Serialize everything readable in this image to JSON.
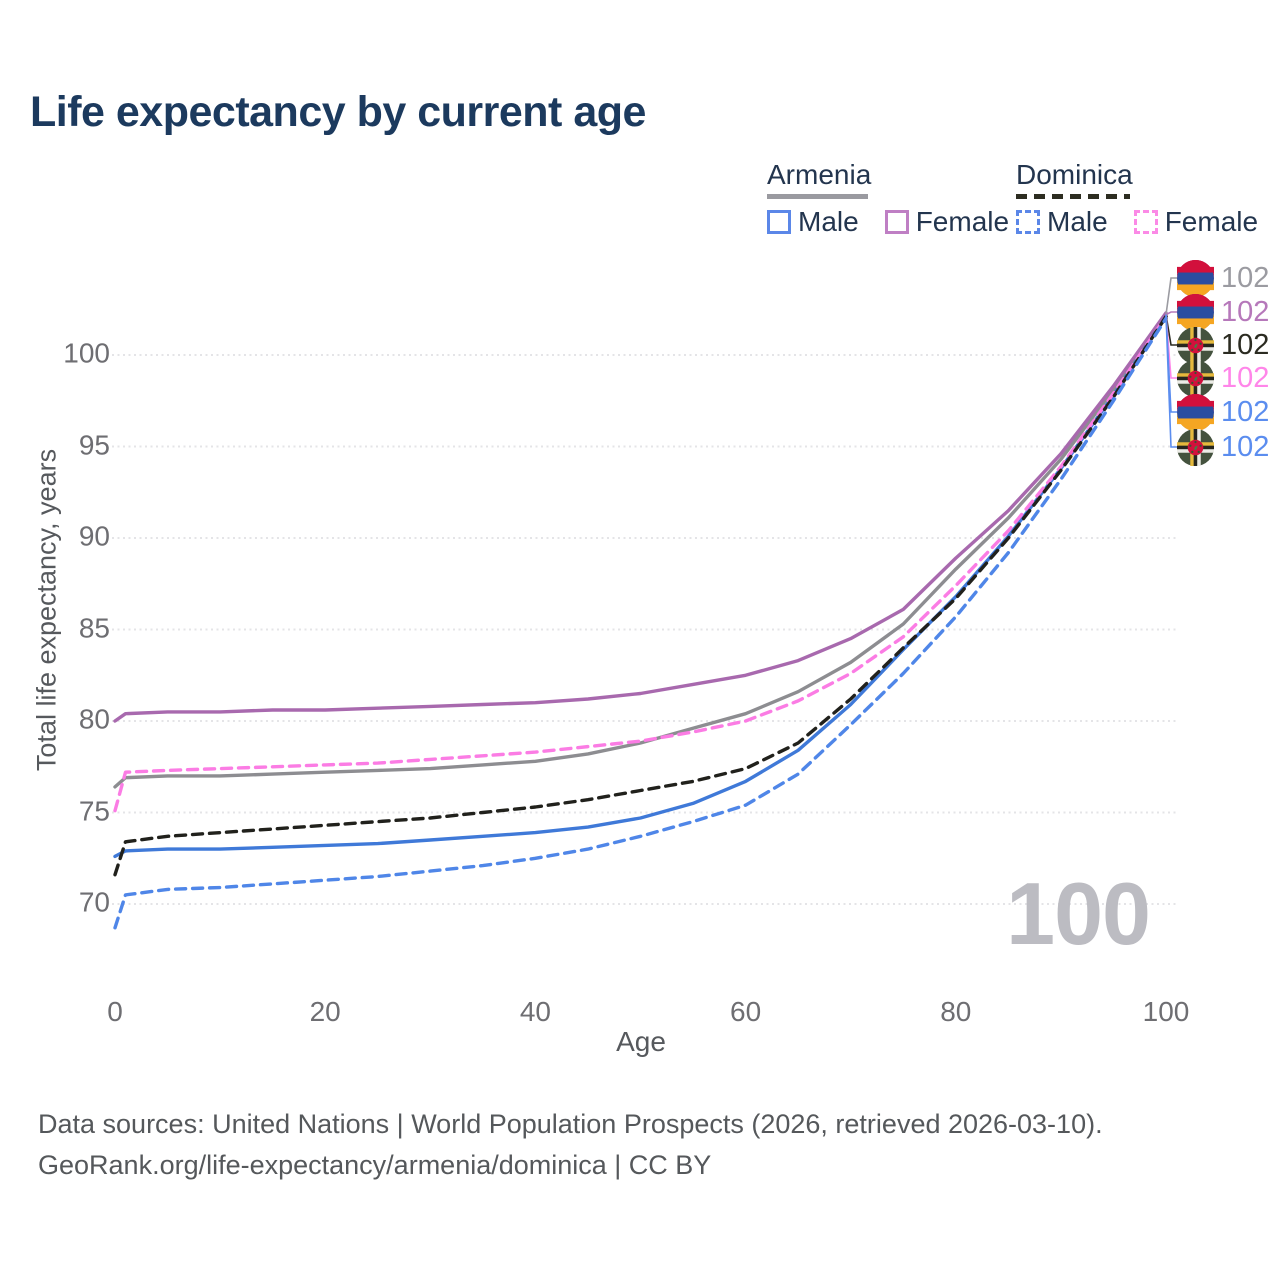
{
  "title": "Life expectancy by current age",
  "legend": {
    "groups": [
      {
        "country": "Armenia",
        "line_style": "solid",
        "underline_color": "#9a9aa0",
        "items": [
          {
            "label": "Male",
            "color": "#5b87e8",
            "dashed": false
          },
          {
            "label": "Female",
            "color": "#bf7fc4",
            "dashed": false
          }
        ]
      },
      {
        "country": "Dominica",
        "line_style": "dashed",
        "underline_color": "#2d2d21",
        "items": [
          {
            "label": "Male",
            "color": "#5b87e8",
            "dashed": true
          },
          {
            "label": "Female",
            "color": "#fb8ae6",
            "dashed": true
          }
        ]
      }
    ]
  },
  "chart_data": {
    "type": "line",
    "xlabel": "Age",
    "ylabel": "Total life expectancy, years",
    "xticks": [
      0,
      20,
      40,
      60,
      80,
      100
    ],
    "yticks": [
      70,
      75,
      80,
      85,
      90,
      95,
      100
    ],
    "xlim": [
      0,
      100
    ],
    "ylim": [
      67,
      103
    ],
    "grid": "horizontal-dotted",
    "x": [
      0,
      1,
      5,
      10,
      15,
      20,
      25,
      30,
      35,
      40,
      45,
      50,
      55,
      60,
      65,
      70,
      75,
      80,
      85,
      90,
      95,
      100
    ],
    "series": [
      {
        "name": "Armenia All",
        "country": "Armenia",
        "sex": "all",
        "color": "#8d8d91",
        "dashed": false,
        "values": [
          76.4,
          76.9,
          77.0,
          77.0,
          77.1,
          77.2,
          77.3,
          77.4,
          77.6,
          77.8,
          78.2,
          78.8,
          79.6,
          80.4,
          81.6,
          83.2,
          85.3,
          88.3,
          91.1,
          94.3,
          98.1,
          102.2
        ]
      },
      {
        "name": "Armenia Female",
        "country": "Armenia",
        "sex": "female",
        "color": "#a869ae",
        "dashed": false,
        "values": [
          80.0,
          80.4,
          80.5,
          80.5,
          80.6,
          80.6,
          80.7,
          80.8,
          80.9,
          81.0,
          81.2,
          81.5,
          82.0,
          82.5,
          83.3,
          84.5,
          86.1,
          88.9,
          91.5,
          94.6,
          98.3,
          102.3
        ]
      },
      {
        "name": "Armenia Male",
        "country": "Armenia",
        "sex": "male",
        "color": "#3f79d8",
        "dashed": false,
        "values": [
          72.6,
          72.9,
          73.0,
          73.0,
          73.1,
          73.2,
          73.3,
          73.5,
          73.7,
          73.9,
          74.2,
          74.7,
          75.5,
          76.7,
          78.4,
          80.9,
          83.9,
          86.8,
          90.1,
          93.8,
          97.8,
          102.1
        ]
      },
      {
        "name": "Dominica Female",
        "country": "Dominica",
        "sex": "female",
        "color": "#fb7ce4",
        "dashed": true,
        "values": [
          75.1,
          77.2,
          77.3,
          77.4,
          77.5,
          77.6,
          77.7,
          77.9,
          78.1,
          78.3,
          78.6,
          78.9,
          79.4,
          80.0,
          81.1,
          82.6,
          84.6,
          87.4,
          90.4,
          93.9,
          97.9,
          102.1
        ]
      },
      {
        "name": "Dominica All",
        "country": "Dominica",
        "sex": "all",
        "color": "#21211c",
        "dashed": true,
        "values": [
          71.6,
          73.4,
          73.7,
          73.9,
          74.1,
          74.3,
          74.5,
          74.7,
          75.0,
          75.3,
          75.7,
          76.2,
          76.7,
          77.4,
          78.8,
          81.2,
          84.0,
          86.7,
          90.0,
          93.7,
          97.7,
          102.1
        ]
      },
      {
        "name": "Dominica Male",
        "country": "Dominica",
        "sex": "male",
        "color": "#4f86e8",
        "dashed": true,
        "values": [
          68.7,
          70.5,
          70.8,
          70.9,
          71.1,
          71.3,
          71.5,
          71.8,
          72.1,
          72.5,
          73.0,
          73.7,
          74.5,
          75.4,
          77.1,
          79.8,
          82.6,
          85.7,
          89.2,
          93.2,
          97.5,
          102.0
        ]
      }
    ]
  },
  "endpoint_labels": [
    {
      "flag": "armenia",
      "value": "102",
      "color": "#9b9ba1"
    },
    {
      "flag": "armenia",
      "value": "102",
      "color": "#b678ba"
    },
    {
      "flag": "dominica",
      "value": "102",
      "color": "#2b2b21"
    },
    {
      "flag": "dominica",
      "value": "102",
      "color": "#ff86e9"
    },
    {
      "flag": "armenia",
      "value": "102",
      "color": "#5b8def"
    },
    {
      "flag": "dominica",
      "value": "102",
      "color": "#5b8def"
    }
  ],
  "flag_colors": {
    "armenia": {
      "stripes": [
        "#d2103c",
        "#2a4da0",
        "#f5a623"
      ]
    },
    "dominica": {
      "field": "#44523e",
      "cross": [
        "#e6b93c",
        "#26261e",
        "#ebebe6"
      ],
      "disc": "#d2103c",
      "dots": "#3c5030"
    }
  },
  "watermark_age": "100",
  "footer": {
    "line1": "Data sources: United Nations | World Population Prospects (2026, retrieved 2026-03-10).",
    "line2": "GeoRank.org/life-expectancy/armenia/dominica | CC BY"
  }
}
